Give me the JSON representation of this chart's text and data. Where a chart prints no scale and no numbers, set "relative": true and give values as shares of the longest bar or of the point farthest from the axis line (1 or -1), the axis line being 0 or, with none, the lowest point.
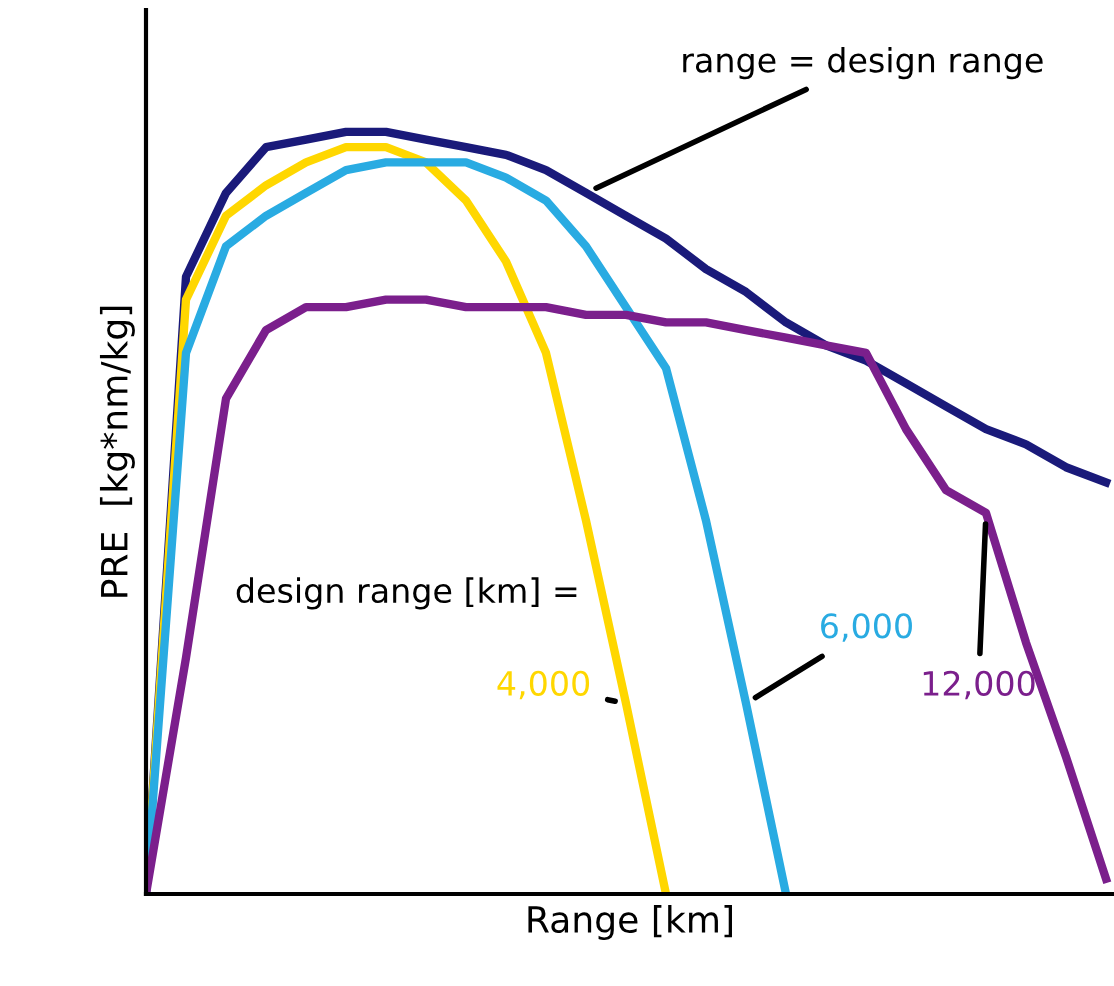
{
  "chart_data": {
    "type": "line",
    "relative": true,
    "xlabel": "Range [km]",
    "ylabel": "PRE  [kg*nm/kg]",
    "categories": [
      null,
      null,
      null,
      null,
      null,
      null,
      null,
      null,
      null,
      null,
      null,
      null,
      null,
      null,
      null,
      null,
      null,
      null,
      null,
      null,
      null,
      null,
      null,
      null,
      null
    ],
    "series": [
      {
        "name": "range = design range",
        "color": "#1a1a7a",
        "values": [
          0,
          0.81,
          0.92,
          0.98,
          0.99,
          1.0,
          1.0,
          0.99,
          0.98,
          0.97,
          0.95,
          0.92,
          0.89,
          0.86,
          0.82,
          0.79,
          0.75,
          0.72,
          0.7,
          0.67,
          0.64,
          0.61,
          0.59,
          0.56,
          0.54
        ]
      },
      {
        "name": "4,000",
        "color": "#ffd700",
        "values": [
          0,
          0.78,
          0.89,
          0.93,
          0.96,
          0.98,
          0.98,
          0.96,
          0.91,
          0.83,
          0.71,
          0.49,
          0.25,
          0,
          null,
          null,
          null,
          null,
          null,
          null,
          null,
          null,
          null,
          null,
          null
        ]
      },
      {
        "name": "6,000",
        "color": "#29abe2",
        "values": [
          0,
          0.71,
          0.85,
          0.89,
          0.92,
          0.95,
          0.96,
          0.96,
          0.96,
          0.94,
          0.91,
          0.85,
          0.77,
          0.69,
          0.49,
          0.25,
          0,
          null,
          null,
          null,
          null,
          null,
          null,
          null,
          null
        ]
      },
      {
        "name": "12,000",
        "color": "#7b1f8c",
        "values": [
          0,
          0.31,
          0.65,
          0.74,
          0.77,
          0.77,
          0.78,
          0.78,
          0.77,
          0.77,
          0.77,
          0.76,
          0.76,
          0.75,
          0.75,
          0.74,
          0.73,
          0.72,
          0.71,
          0.61,
          0.53,
          0.5,
          0.33,
          0.18,
          0.02
        ]
      }
    ],
    "annotations": [
      "design range [km] ="
    ],
    "legend": false,
    "marker": "none",
    "line_style": "solid"
  }
}
